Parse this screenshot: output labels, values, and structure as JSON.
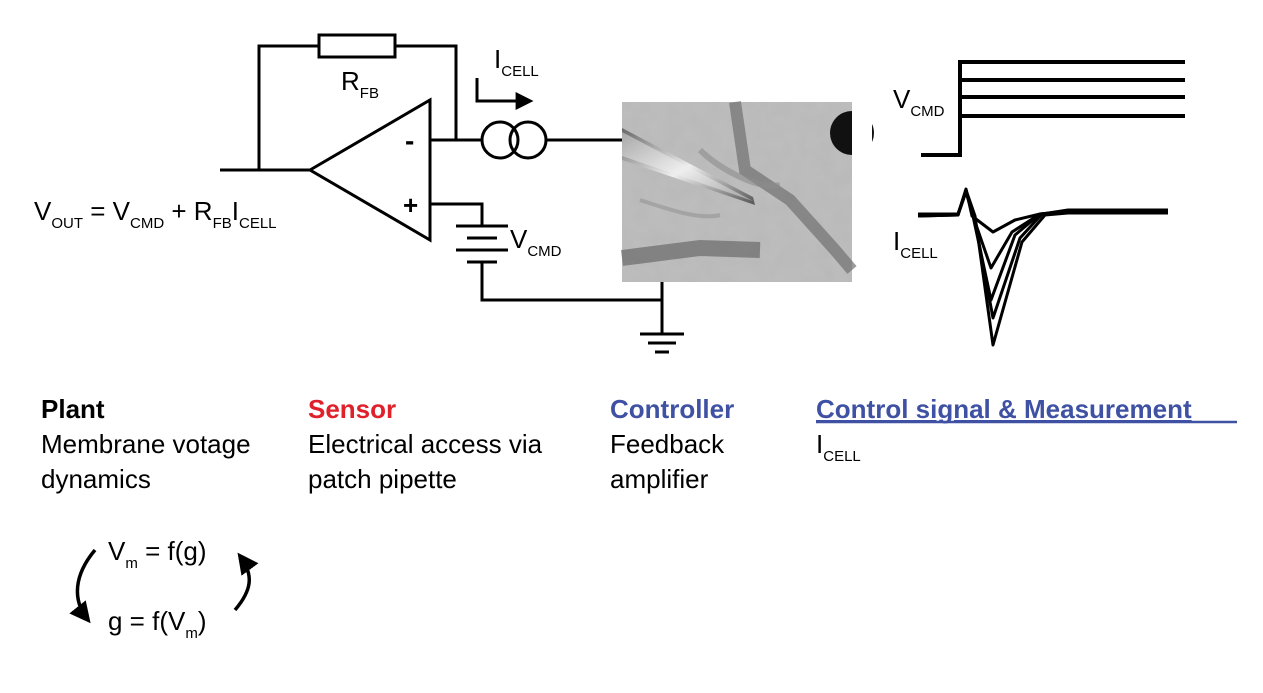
{
  "circuit": {
    "feedback_resistor": {
      "main": "R",
      "sub": "FB"
    },
    "current_label": {
      "main": "I",
      "sub": "CELL"
    },
    "minus_sign": "-",
    "plus_sign": "+",
    "battery_label": {
      "main": "V",
      "sub": "CMD"
    },
    "output_equation": {
      "v": "V",
      "v_sub": "OUT",
      "eq1": " = V",
      "cmd_sub": "CMD",
      "eq2": " + R",
      "fb_sub": "FB",
      "eq3": "I",
      "cell_sub": "CELL"
    }
  },
  "traces": {
    "voltage_label": {
      "main": "V",
      "sub": "CMD"
    },
    "current_label": {
      "main": "I",
      "sub": "CELL"
    }
  },
  "columns": {
    "plant": {
      "heading": "Plant",
      "line1": "Membrane votage",
      "line2": "dynamics",
      "color": "#000000"
    },
    "sensor": {
      "heading": "Sensor",
      "line1": "Electrical access via",
      "line2": "patch pipette",
      "color": "#e0202a"
    },
    "controller": {
      "heading": "Controller",
      "line1": "Feedback",
      "line2": "amplifier",
      "color": "#3e51a3"
    },
    "control_signal": {
      "heading": "Control signal & Measurement",
      "color": "#3e51a3",
      "value_main": "I",
      "value_sub": "CELL"
    }
  },
  "feedback_loop": {
    "eq1": {
      "v": "V",
      "sub": "m",
      "rest": " = f(g)"
    },
    "eq2": {
      "lhs": "g = f(V",
      "sub": "m",
      "rest": ")"
    }
  }
}
